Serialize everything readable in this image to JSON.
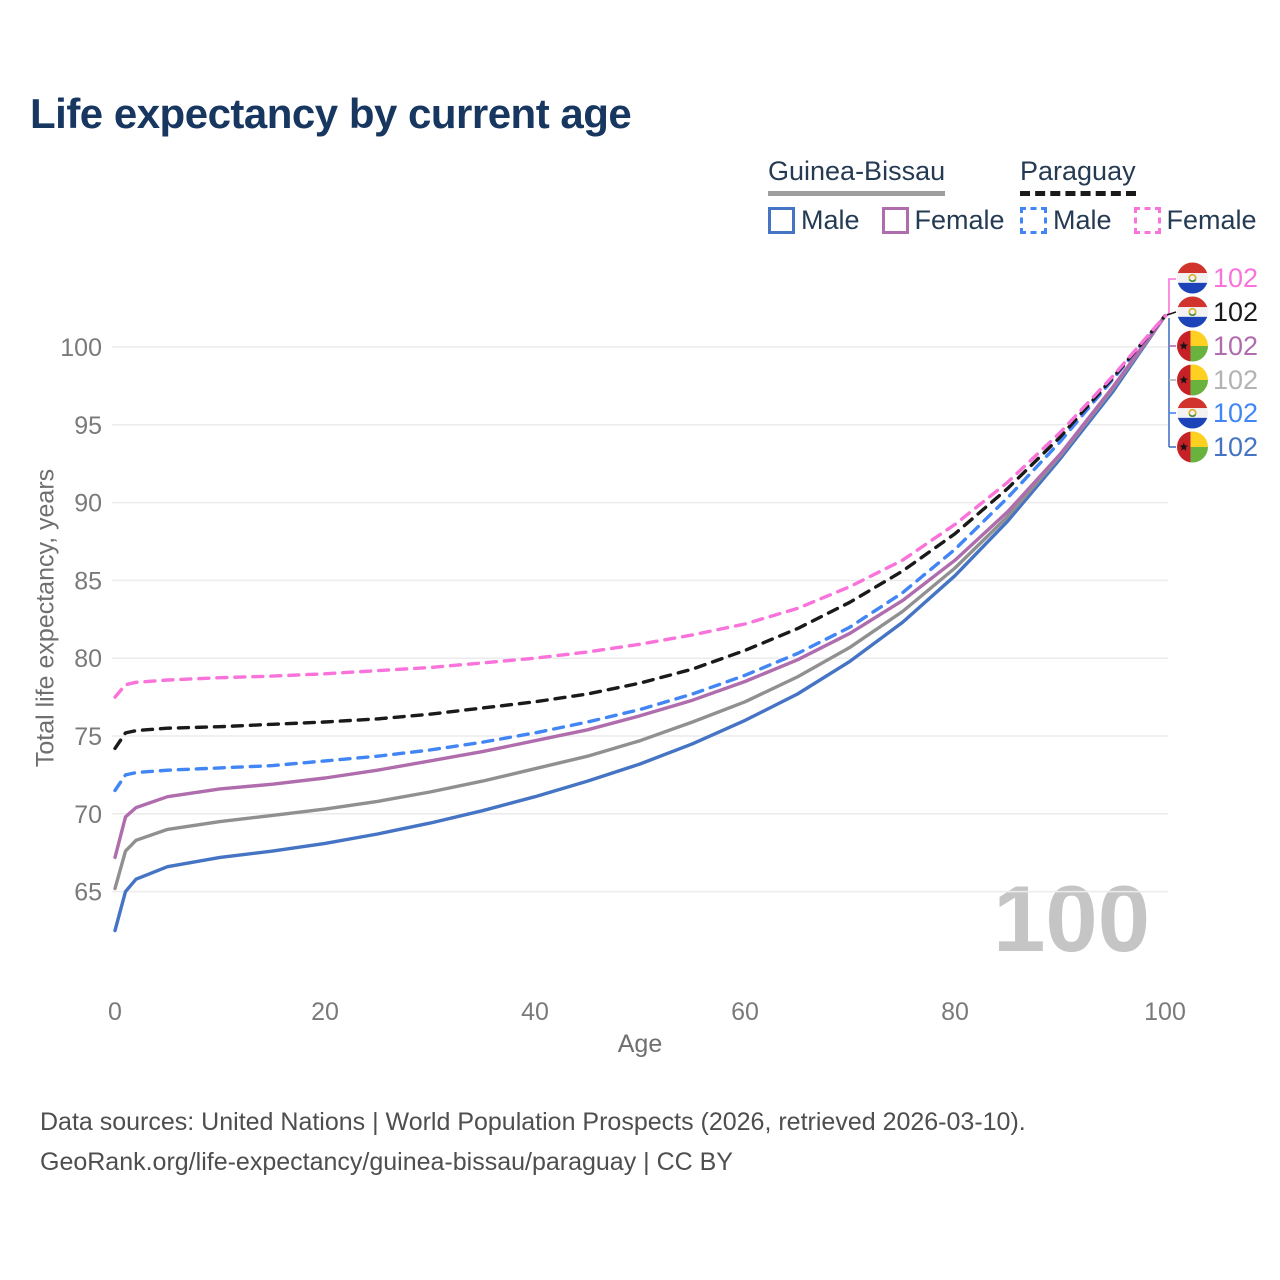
{
  "title": "Life expectancy by current age",
  "watermark": "100",
  "y_axis": {
    "label": "Total life expectancy, years",
    "ticks": [
      65,
      70,
      75,
      80,
      85,
      90,
      95,
      100
    ]
  },
  "x_axis": {
    "label": "Age",
    "ticks": [
      0,
      20,
      40,
      60,
      80,
      100
    ]
  },
  "footer": {
    "line1": "Data sources: United Nations | World Population Prospects (2026, retrieved 2026-03-10).",
    "line2": "GeoRank.org/life-expectancy/guinea-bissau/paraguay | CC BY"
  },
  "legend": {
    "groups": [
      {
        "id": "guinea-bissau",
        "label": "Guinea-Bissau",
        "line_color": "#9e9e9e",
        "line_style": "solid",
        "items": [
          {
            "label": "Male",
            "color": "#4574c4",
            "style": "solid"
          },
          {
            "label": "Female",
            "color": "#b06dad",
            "style": "solid"
          }
        ]
      },
      {
        "id": "paraguay",
        "label": "Paraguay",
        "line_color": "#1a1a1a",
        "line_style": "dashed",
        "items": [
          {
            "label": "Male",
            "color": "#4286f5",
            "style": "dashed"
          },
          {
            "label": "Female",
            "color": "#f973da",
            "style": "dashed"
          }
        ]
      }
    ]
  },
  "end_labels": [
    {
      "flag": "paraguay",
      "value": "102",
      "color": "#f973da"
    },
    {
      "flag": "paraguay",
      "value": "102",
      "color": "#1a1a1a"
    },
    {
      "flag": "guinea-bissau",
      "value": "102",
      "color": "#b06dad"
    },
    {
      "flag": "guinea-bissau",
      "value": "102",
      "color": "#b3b3b3"
    },
    {
      "flag": "paraguay",
      "value": "102",
      "color": "#4286f5"
    },
    {
      "flag": "guinea-bissau",
      "value": "102",
      "color": "#4574c4"
    }
  ],
  "chart_data": {
    "type": "line",
    "title": "Life expectancy by current age",
    "xlabel": "Age",
    "ylabel": "Total life expectancy, years",
    "xlim": [
      0,
      100
    ],
    "ylim": [
      61.5,
      103.5
    ],
    "grid": "horizontal",
    "legend_position": "top-right",
    "x": [
      0,
      1,
      2,
      5,
      10,
      15,
      20,
      25,
      30,
      35,
      40,
      45,
      50,
      55,
      60,
      65,
      70,
      75,
      80,
      85,
      90,
      95,
      100
    ],
    "series": [
      {
        "id": "py-female",
        "name": "Paraguay Female",
        "color": "#f973da",
        "dashed": true,
        "values": [
          77.5,
          78.3,
          78.45,
          78.6,
          78.75,
          78.85,
          79.0,
          79.2,
          79.4,
          79.7,
          80.0,
          80.4,
          80.9,
          81.5,
          82.2,
          83.2,
          84.6,
          86.3,
          88.6,
          91.3,
          94.5,
          98.1,
          102
        ]
      },
      {
        "id": "py-total",
        "name": "Paraguay Both sexes",
        "color": "#1a1a1a",
        "dashed": true,
        "values": [
          74.2,
          75.2,
          75.35,
          75.5,
          75.6,
          75.75,
          75.9,
          76.1,
          76.4,
          76.8,
          77.2,
          77.7,
          78.4,
          79.3,
          80.5,
          81.9,
          83.6,
          85.6,
          88.0,
          90.9,
          94.2,
          98.0,
          102
        ]
      },
      {
        "id": "gb-female",
        "name": "Guinea-Bissau Female",
        "color": "#b06dad",
        "dashed": false,
        "values": [
          67.2,
          69.8,
          70.4,
          71.1,
          71.6,
          71.9,
          72.3,
          72.8,
          73.4,
          74.0,
          74.7,
          75.4,
          76.3,
          77.3,
          78.5,
          79.9,
          81.6,
          83.7,
          86.3,
          89.4,
          93.1,
          97.4,
          102
        ]
      },
      {
        "id": "gb-total",
        "name": "Guinea-Bissau Both sexes",
        "color": "#909090",
        "dashed": false,
        "values": [
          65.2,
          67.6,
          68.3,
          69.0,
          69.5,
          69.9,
          70.3,
          70.8,
          71.4,
          72.1,
          72.9,
          73.7,
          74.7,
          75.9,
          77.2,
          78.8,
          80.7,
          83.0,
          85.8,
          89.1,
          93.0,
          97.3,
          102
        ]
      },
      {
        "id": "py-male",
        "name": "Paraguay Male",
        "color": "#4286f5",
        "dashed": true,
        "values": [
          71.5,
          72.5,
          72.65,
          72.8,
          72.95,
          73.1,
          73.4,
          73.7,
          74.1,
          74.6,
          75.2,
          75.9,
          76.7,
          77.7,
          78.9,
          80.3,
          82.0,
          84.2,
          87.0,
          90.3,
          93.9,
          97.9,
          102
        ]
      },
      {
        "id": "gb-male",
        "name": "Guinea-Bissau Male",
        "color": "#4574c4",
        "dashed": false,
        "values": [
          62.5,
          65.0,
          65.8,
          66.6,
          67.2,
          67.6,
          68.1,
          68.7,
          69.4,
          70.2,
          71.1,
          72.1,
          73.2,
          74.5,
          76.0,
          77.7,
          79.8,
          82.3,
          85.3,
          88.8,
          92.8,
          97.1,
          102
        ]
      }
    ]
  }
}
